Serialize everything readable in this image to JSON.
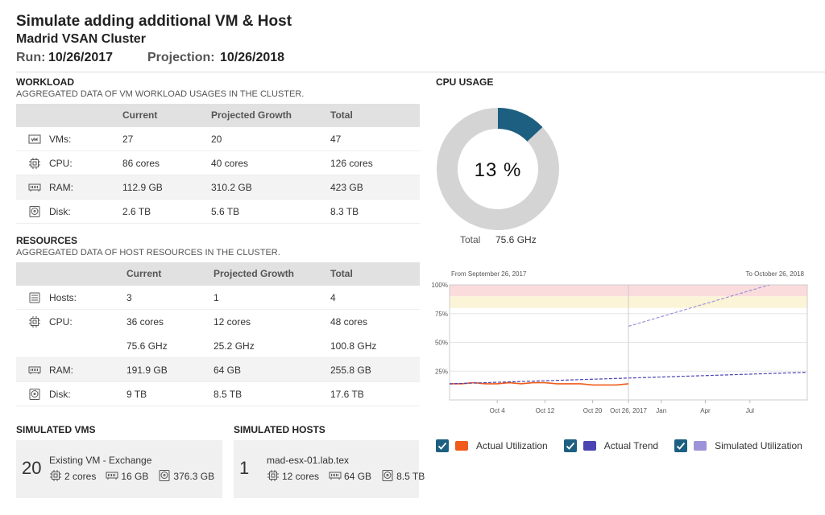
{
  "header": {
    "title": "Simulate adding additional VM & Host",
    "subtitle": "Madrid VSAN Cluster",
    "run_label": "Run:",
    "run_value": "10/26/2017",
    "projection_label": "Projection:",
    "projection_value": "10/26/2018"
  },
  "workload": {
    "title": "WORKLOAD",
    "subtitle": "AGGREGATED DATA OF VM WORKLOAD USAGES IN THE CLUSTER.",
    "columns": [
      "Current",
      "Projected Growth",
      "Total"
    ],
    "rows": [
      {
        "icon": "vm",
        "label": "VMs:",
        "cells": [
          "27",
          "20",
          "47"
        ]
      },
      {
        "icon": "cpu",
        "label": "CPU:",
        "cells": [
          "86 cores",
          "40 cores",
          "126 cores"
        ]
      },
      {
        "icon": "ram",
        "label": "RAM:",
        "cells": [
          "112.9 GB",
          "310.2 GB",
          "423 GB"
        ]
      },
      {
        "icon": "disk",
        "label": "Disk:",
        "cells": [
          "2.6 TB",
          "5.6 TB",
          "8.3 TB"
        ]
      }
    ]
  },
  "resources": {
    "title": "RESOURCES",
    "subtitle": "AGGREGATED DATA OF HOST RESOURCES IN THE CLUSTER.",
    "columns": [
      "Current",
      "Projected Growth",
      "Total"
    ],
    "rows": [
      {
        "icon": "host",
        "label": "Hosts:",
        "cells": [
          "3",
          "1",
          "4"
        ]
      },
      {
        "icon": "cpu",
        "label": "CPU:",
        "cells": [
          "36 cores",
          "12 cores",
          "48 cores"
        ],
        "extra": [
          "75.6 GHz",
          "25.2 GHz",
          "100.8 GHz"
        ]
      },
      {
        "icon": "ram",
        "label": "RAM:",
        "cells": [
          "191.9 GB",
          "64 GB",
          "255.8 GB"
        ]
      },
      {
        "icon": "disk",
        "label": "Disk:",
        "cells": [
          "9 TB",
          "8.5 TB",
          "17.6 TB"
        ]
      }
    ]
  },
  "simulated_vms": {
    "title": "SIMULATED VMS",
    "count": "20",
    "name": "Existing VM - Exchange",
    "cpu": "2 cores",
    "ram": "16 GB",
    "disk": "376.3 GB"
  },
  "simulated_hosts": {
    "title": "SIMULATED HOSTS",
    "count": "1",
    "name": "mad-esx-01.lab.tex",
    "cpu": "12 cores",
    "ram": "64 GB",
    "disk": "8.5 TB"
  },
  "cpu_usage": {
    "title": "CPU USAGE",
    "percent": 13,
    "percent_label": "13 %",
    "color": "#1d5f80",
    "rest_color": "#d4d4d4",
    "total_label": "Total",
    "total_value": "75.6 GHz"
  },
  "chart_data": {
    "type": "line",
    "range_from": "From September 26, 2017",
    "range_to": "To October 26, 2018",
    "xlim": [
      "2017-09-26",
      "2018-10-26"
    ],
    "xbreak": "2017-10-26",
    "xticks": [
      {
        "value": "2017-10-04",
        "label": "Oct 4"
      },
      {
        "value": "2017-10-12",
        "label": "Oct 12"
      },
      {
        "value": "2017-10-20",
        "label": "Oct 20"
      },
      {
        "value": "2017-10-26",
        "label": "Oct 26, 2017"
      },
      {
        "value": "2018-01-01",
        "label": "Jan"
      },
      {
        "value": "2018-04-01",
        "label": "Apr"
      },
      {
        "value": "2018-07-01",
        "label": "Jul"
      }
    ],
    "ylim": [
      0,
      100
    ],
    "yticks": [
      {
        "value": 25,
        "label": "25%"
      },
      {
        "value": 50,
        "label": "50%"
      },
      {
        "value": 75,
        "label": "75%"
      },
      {
        "value": 100,
        "label": "100%"
      }
    ],
    "bands": [
      {
        "from": 90,
        "to": 100,
        "color": "#fbdcdc"
      },
      {
        "from": 80,
        "to": 90,
        "color": "#fbf4d6"
      }
    ],
    "series": [
      {
        "name": "Actual Utilization",
        "color": "#f05a1a",
        "dashed": false,
        "x": [
          "2017-09-26",
          "2017-09-28",
          "2017-09-30",
          "2017-10-02",
          "2017-10-04",
          "2017-10-06",
          "2017-10-08",
          "2017-10-10",
          "2017-10-12",
          "2017-10-14",
          "2017-10-16",
          "2017-10-18",
          "2017-10-20",
          "2017-10-22",
          "2017-10-24",
          "2017-10-26"
        ],
        "values": [
          14,
          14,
          15,
          14,
          14,
          15,
          14,
          15,
          15,
          14,
          14,
          14,
          13,
          13,
          13,
          14
        ]
      },
      {
        "name": "Actual Trend",
        "color": "#4b44b3",
        "dashed": true,
        "x": [
          "2017-09-26",
          "2018-10-26"
        ],
        "values": [
          14,
          24
        ]
      },
      {
        "name": "Simulated Utilization",
        "color": "#9c93d8",
        "dashed": true,
        "x": [
          "2017-10-26",
          "2018-08-10"
        ],
        "values": [
          64,
          100
        ]
      }
    ]
  }
}
